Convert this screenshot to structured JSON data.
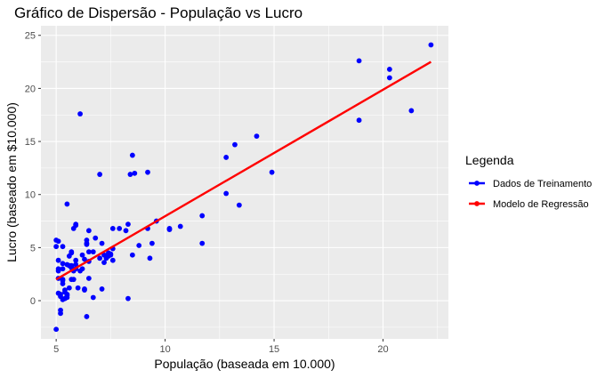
{
  "chart_data": {
    "type": "scatter",
    "title": "Gráfico de Dispersão - População vs Lucro",
    "xlabel": "População (baseada em 10.000)",
    "ylabel": "Lucro (baseado em $10.000)",
    "xlim": [
      4.3,
      23.0
    ],
    "ylim": [
      -3.6,
      25.9
    ],
    "xticks": [
      5,
      10,
      15,
      20
    ],
    "yticks": [
      0,
      5,
      10,
      15,
      20,
      25
    ],
    "grid": true,
    "legend": {
      "title": "Legenda",
      "placement": "right",
      "entries": [
        "Dados de Treinamento",
        "Modelo de Regressão"
      ]
    },
    "series": [
      {
        "name": "Dados de Treinamento",
        "kind": "points",
        "color": "#0000ff",
        "points": [
          [
            6.1,
            17.6
          ],
          [
            5.5,
            9.1
          ],
          [
            8.5,
            13.7
          ],
          [
            7.0,
            11.9
          ],
          [
            5.8,
            6.8
          ],
          [
            8.4,
            11.9
          ],
          [
            7.5,
            4.3
          ],
          [
            8.6,
            12.0
          ],
          [
            6.5,
            6.6
          ],
          [
            5.1,
            3.8
          ],
          [
            5.7,
            3.3
          ],
          [
            14.2,
            15.5
          ],
          [
            5.7,
            3.2
          ],
          [
            6.2,
            4.3
          ],
          [
            5.5,
            0.6
          ],
          [
            5.9,
            3.8
          ],
          [
            8.3,
            7.2
          ],
          [
            5.7,
            4.6
          ],
          [
            6.4,
            5.7
          ],
          [
            7.0,
            4.0
          ],
          [
            5.4,
            1.0
          ],
          [
            5.1,
            2.1
          ],
          [
            5.6,
            1.2
          ],
          [
            5.6,
            4.2
          ],
          [
            6.3,
            1.0
          ],
          [
            12.8,
            13.5
          ],
          [
            5.5,
            0.3
          ],
          [
            6.3,
            1.1
          ],
          [
            6.5,
            3.7
          ],
          [
            5.3,
            1.9
          ],
          [
            7.9,
            6.8
          ],
          [
            5.5,
            0.5
          ],
          [
            5.1,
            2.8
          ],
          [
            5.1,
            5.6
          ],
          [
            5.3,
            1.6
          ],
          [
            6.2,
            3.0
          ],
          [
            5.2,
            -0.9
          ],
          [
            6.5,
            4.6
          ],
          [
            5.7,
            4.5
          ],
          [
            6.8,
            5.9
          ],
          [
            5.4,
            0.8
          ],
          [
            7.2,
            4.3
          ],
          [
            5.9,
            7.1
          ],
          [
            5.3,
            3.5
          ],
          [
            5.0,
            5.7
          ],
          [
            8.2,
            6.6
          ],
          [
            9.2,
            6.8
          ],
          [
            7.4,
            4.2
          ],
          [
            5.0,
            -2.7
          ],
          [
            5.1,
            0.7
          ],
          [
            8.8,
            5.2
          ],
          [
            7.2,
            3.6
          ],
          [
            5.8,
            2.8
          ],
          [
            9.3,
            4.0
          ],
          [
            5.3,
            5.1
          ],
          [
            5.7,
            2.0
          ],
          [
            5.9,
            7.2
          ],
          [
            10.2,
            6.7
          ],
          [
            6.1,
            2.8
          ],
          [
            10.7,
            7.0
          ],
          [
            13.4,
            9.0
          ],
          [
            6.0,
            1.2
          ],
          [
            5.8,
            2.0
          ],
          [
            7.5,
            4.4
          ],
          [
            8.5,
            4.3
          ],
          [
            6.7,
            0.3
          ],
          [
            5.9,
            3.4
          ],
          [
            5.3,
            0.1
          ],
          [
            9.6,
            7.5
          ],
          [
            7.3,
            4.0
          ],
          [
            5.4,
            0.2
          ],
          [
            5.6,
            3.3
          ],
          [
            6.7,
            4.6
          ],
          [
            6.4,
            5.3
          ],
          [
            10.2,
            6.8
          ],
          [
            5.7,
            3.1
          ],
          [
            5.2,
            -1.2
          ],
          [
            6.4,
            -1.5
          ],
          [
            5.2,
            0.4
          ],
          [
            7.6,
            4.9
          ],
          [
            11.7,
            8.0
          ],
          [
            13.2,
            14.7
          ],
          [
            12.8,
            10.1
          ],
          [
            5.2,
            0.6
          ],
          [
            6.4,
            5.4
          ],
          [
            9.2,
            12.1
          ],
          [
            5.0,
            5.1
          ],
          [
            8.3,
            0.2
          ],
          [
            7.1,
            5.4
          ],
          [
            5.3,
            3.0
          ],
          [
            7.6,
            6.8
          ],
          [
            9.4,
            5.4
          ],
          [
            7.4,
            4.5
          ],
          [
            6.3,
            3.9
          ],
          [
            6.5,
            2.1
          ],
          [
            7.6,
            3.8
          ],
          [
            5.9,
            3.0
          ],
          [
            7.1,
            1.1
          ],
          [
            5.5,
            3.4
          ],
          [
            22.2,
            24.1
          ],
          [
            20.3,
            21.8
          ],
          [
            18.9,
            22.6
          ],
          [
            20.3,
            21.0
          ],
          [
            18.9,
            17.0
          ],
          [
            21.3,
            17.9
          ],
          [
            14.9,
            12.1
          ],
          [
            11.7,
            5.4
          ],
          [
            5.1,
            3.0
          ],
          [
            5.3,
            2.0
          ]
        ]
      },
      {
        "name": "Modelo de Regressão",
        "kind": "line",
        "color": "#ff0000",
        "points": [
          [
            5.0,
            2.0
          ],
          [
            22.2,
            22.5
          ]
        ]
      }
    ]
  }
}
